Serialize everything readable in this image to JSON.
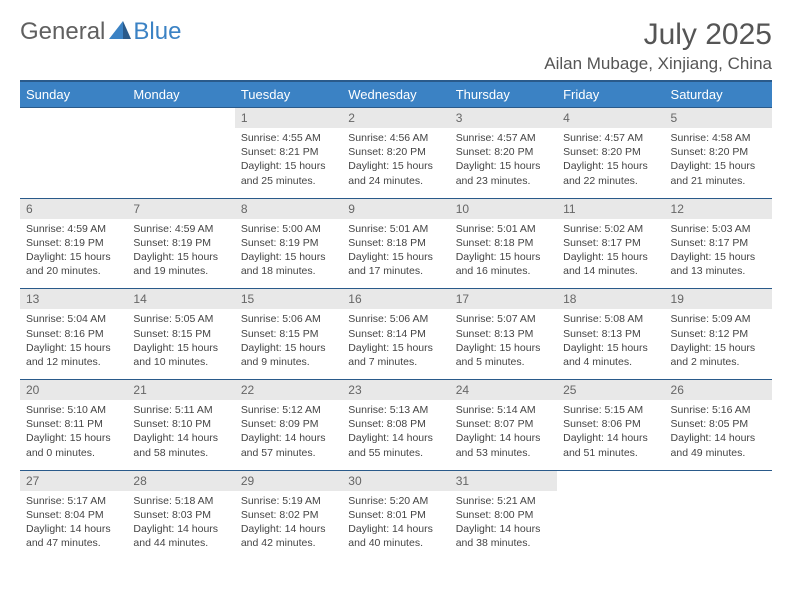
{
  "logo": {
    "part1": "General",
    "part2": "Blue"
  },
  "title": "July 2025",
  "location": "Ailan Mubage, Xinjiang, China",
  "colors": {
    "header_bg": "#3b82c4",
    "header_border": "#2a5a8a",
    "daynum_bg": "#e8e8e8",
    "text": "#555555"
  },
  "weekdays": [
    "Sunday",
    "Monday",
    "Tuesday",
    "Wednesday",
    "Thursday",
    "Friday",
    "Saturday"
  ],
  "weeks": [
    [
      {
        "n": "",
        "sr": "",
        "ss": "",
        "dl": ""
      },
      {
        "n": "",
        "sr": "",
        "ss": "",
        "dl": ""
      },
      {
        "n": "1",
        "sr": "Sunrise: 4:55 AM",
        "ss": "Sunset: 8:21 PM",
        "dl": "Daylight: 15 hours and 25 minutes."
      },
      {
        "n": "2",
        "sr": "Sunrise: 4:56 AM",
        "ss": "Sunset: 8:20 PM",
        "dl": "Daylight: 15 hours and 24 minutes."
      },
      {
        "n": "3",
        "sr": "Sunrise: 4:57 AM",
        "ss": "Sunset: 8:20 PM",
        "dl": "Daylight: 15 hours and 23 minutes."
      },
      {
        "n": "4",
        "sr": "Sunrise: 4:57 AM",
        "ss": "Sunset: 8:20 PM",
        "dl": "Daylight: 15 hours and 22 minutes."
      },
      {
        "n": "5",
        "sr": "Sunrise: 4:58 AM",
        "ss": "Sunset: 8:20 PM",
        "dl": "Daylight: 15 hours and 21 minutes."
      }
    ],
    [
      {
        "n": "6",
        "sr": "Sunrise: 4:59 AM",
        "ss": "Sunset: 8:19 PM",
        "dl": "Daylight: 15 hours and 20 minutes."
      },
      {
        "n": "7",
        "sr": "Sunrise: 4:59 AM",
        "ss": "Sunset: 8:19 PM",
        "dl": "Daylight: 15 hours and 19 minutes."
      },
      {
        "n": "8",
        "sr": "Sunrise: 5:00 AM",
        "ss": "Sunset: 8:19 PM",
        "dl": "Daylight: 15 hours and 18 minutes."
      },
      {
        "n": "9",
        "sr": "Sunrise: 5:01 AM",
        "ss": "Sunset: 8:18 PM",
        "dl": "Daylight: 15 hours and 17 minutes."
      },
      {
        "n": "10",
        "sr": "Sunrise: 5:01 AM",
        "ss": "Sunset: 8:18 PM",
        "dl": "Daylight: 15 hours and 16 minutes."
      },
      {
        "n": "11",
        "sr": "Sunrise: 5:02 AM",
        "ss": "Sunset: 8:17 PM",
        "dl": "Daylight: 15 hours and 14 minutes."
      },
      {
        "n": "12",
        "sr": "Sunrise: 5:03 AM",
        "ss": "Sunset: 8:17 PM",
        "dl": "Daylight: 15 hours and 13 minutes."
      }
    ],
    [
      {
        "n": "13",
        "sr": "Sunrise: 5:04 AM",
        "ss": "Sunset: 8:16 PM",
        "dl": "Daylight: 15 hours and 12 minutes."
      },
      {
        "n": "14",
        "sr": "Sunrise: 5:05 AM",
        "ss": "Sunset: 8:15 PM",
        "dl": "Daylight: 15 hours and 10 minutes."
      },
      {
        "n": "15",
        "sr": "Sunrise: 5:06 AM",
        "ss": "Sunset: 8:15 PM",
        "dl": "Daylight: 15 hours and 9 minutes."
      },
      {
        "n": "16",
        "sr": "Sunrise: 5:06 AM",
        "ss": "Sunset: 8:14 PM",
        "dl": "Daylight: 15 hours and 7 minutes."
      },
      {
        "n": "17",
        "sr": "Sunrise: 5:07 AM",
        "ss": "Sunset: 8:13 PM",
        "dl": "Daylight: 15 hours and 5 minutes."
      },
      {
        "n": "18",
        "sr": "Sunrise: 5:08 AM",
        "ss": "Sunset: 8:13 PM",
        "dl": "Daylight: 15 hours and 4 minutes."
      },
      {
        "n": "19",
        "sr": "Sunrise: 5:09 AM",
        "ss": "Sunset: 8:12 PM",
        "dl": "Daylight: 15 hours and 2 minutes."
      }
    ],
    [
      {
        "n": "20",
        "sr": "Sunrise: 5:10 AM",
        "ss": "Sunset: 8:11 PM",
        "dl": "Daylight: 15 hours and 0 minutes."
      },
      {
        "n": "21",
        "sr": "Sunrise: 5:11 AM",
        "ss": "Sunset: 8:10 PM",
        "dl": "Daylight: 14 hours and 58 minutes."
      },
      {
        "n": "22",
        "sr": "Sunrise: 5:12 AM",
        "ss": "Sunset: 8:09 PM",
        "dl": "Daylight: 14 hours and 57 minutes."
      },
      {
        "n": "23",
        "sr": "Sunrise: 5:13 AM",
        "ss": "Sunset: 8:08 PM",
        "dl": "Daylight: 14 hours and 55 minutes."
      },
      {
        "n": "24",
        "sr": "Sunrise: 5:14 AM",
        "ss": "Sunset: 8:07 PM",
        "dl": "Daylight: 14 hours and 53 minutes."
      },
      {
        "n": "25",
        "sr": "Sunrise: 5:15 AM",
        "ss": "Sunset: 8:06 PM",
        "dl": "Daylight: 14 hours and 51 minutes."
      },
      {
        "n": "26",
        "sr": "Sunrise: 5:16 AM",
        "ss": "Sunset: 8:05 PM",
        "dl": "Daylight: 14 hours and 49 minutes."
      }
    ],
    [
      {
        "n": "27",
        "sr": "Sunrise: 5:17 AM",
        "ss": "Sunset: 8:04 PM",
        "dl": "Daylight: 14 hours and 47 minutes."
      },
      {
        "n": "28",
        "sr": "Sunrise: 5:18 AM",
        "ss": "Sunset: 8:03 PM",
        "dl": "Daylight: 14 hours and 44 minutes."
      },
      {
        "n": "29",
        "sr": "Sunrise: 5:19 AM",
        "ss": "Sunset: 8:02 PM",
        "dl": "Daylight: 14 hours and 42 minutes."
      },
      {
        "n": "30",
        "sr": "Sunrise: 5:20 AM",
        "ss": "Sunset: 8:01 PM",
        "dl": "Daylight: 14 hours and 40 minutes."
      },
      {
        "n": "31",
        "sr": "Sunrise: 5:21 AM",
        "ss": "Sunset: 8:00 PM",
        "dl": "Daylight: 14 hours and 38 minutes."
      },
      {
        "n": "",
        "sr": "",
        "ss": "",
        "dl": ""
      },
      {
        "n": "",
        "sr": "",
        "ss": "",
        "dl": ""
      }
    ]
  ]
}
